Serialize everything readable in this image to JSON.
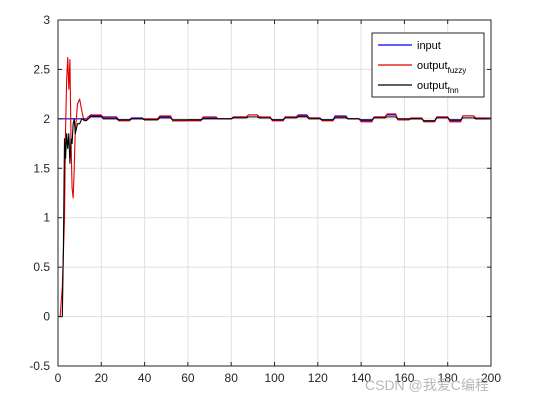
{
  "chart_data": {
    "type": "line",
    "xlim": [
      0,
      200
    ],
    "ylim": [
      -0.5,
      3
    ],
    "xticks": [
      0,
      20,
      40,
      60,
      80,
      100,
      120,
      140,
      160,
      180,
      200
    ],
    "yticks": [
      -0.5,
      0,
      0.5,
      1,
      1.5,
      2,
      2.5,
      3
    ],
    "grid": true,
    "legend_position": "top-right",
    "legend": [
      {
        "base": "input",
        "sub": ""
      },
      {
        "base": "output",
        "sub": "fuzzy"
      },
      {
        "base": "output",
        "sub": "fnn"
      }
    ],
    "series": [
      {
        "name": "input",
        "color": "#0000ff",
        "points": [
          [
            0,
            2.0
          ],
          [
            14,
            2.0
          ],
          [
            15,
            2.03
          ],
          [
            20,
            2.03
          ],
          [
            21,
            2.02
          ],
          [
            27,
            2.02
          ],
          [
            28,
            1.99
          ],
          [
            33,
            1.99
          ],
          [
            34,
            2.01
          ],
          [
            39,
            2.01
          ],
          [
            40,
            1.99
          ],
          [
            46,
            1.99
          ],
          [
            47,
            2.02
          ],
          [
            52,
            2.02
          ],
          [
            53,
            1.98
          ],
          [
            59,
            1.98
          ],
          [
            60,
            1.99
          ],
          [
            66,
            1.99
          ],
          [
            67,
            2.01
          ],
          [
            73,
            2.01
          ],
          [
            74,
            2.0
          ],
          [
            80,
            2.0
          ],
          [
            81,
            2.02
          ],
          [
            87,
            2.02
          ],
          [
            88,
            2.04
          ],
          [
            92,
            2.04
          ],
          [
            93,
            2.01
          ],
          [
            98,
            2.01
          ],
          [
            99,
            1.99
          ],
          [
            104,
            1.99
          ],
          [
            105,
            2.02
          ],
          [
            110,
            2.02
          ],
          [
            111,
            2.04
          ],
          [
            115,
            2.04
          ],
          [
            116,
            2.01
          ],
          [
            121,
            2.01
          ],
          [
            122,
            1.99
          ],
          [
            127,
            1.99
          ],
          [
            128,
            2.03
          ],
          [
            133,
            2.03
          ],
          [
            134,
            2.0
          ],
          [
            139,
            2.0
          ],
          [
            140,
            1.98
          ],
          [
            145,
            1.98
          ],
          [
            146,
            2.02
          ],
          [
            151,
            2.02
          ],
          [
            152,
            2.04
          ],
          [
            156,
            2.04
          ],
          [
            157,
            1.99
          ],
          [
            162,
            1.99
          ],
          [
            163,
            2.0
          ],
          [
            168,
            2.0
          ],
          [
            169,
            1.98
          ],
          [
            174,
            1.98
          ],
          [
            175,
            2.02
          ],
          [
            180,
            2.02
          ],
          [
            181,
            1.98
          ],
          [
            186,
            1.98
          ],
          [
            187,
            2.03
          ],
          [
            192,
            2.03
          ],
          [
            193,
            2.0
          ],
          [
            200,
            2.0
          ]
        ]
      },
      {
        "name": "output_fuzzy",
        "color": "#e00000",
        "points": [
          [
            0,
            0
          ],
          [
            1,
            0
          ],
          [
            2,
            0.3
          ],
          [
            3,
            1.0
          ],
          [
            3.5,
            1.9
          ],
          [
            4,
            2.4
          ],
          [
            4.5,
            2.62
          ],
          [
            5,
            2.3
          ],
          [
            5.5,
            2.6
          ],
          [
            6,
            1.8
          ],
          [
            6.5,
            1.3
          ],
          [
            7,
            1.2
          ],
          [
            7.5,
            1.5
          ],
          [
            8,
            1.9
          ],
          [
            8.5,
            2.0
          ],
          [
            9,
            2.15
          ],
          [
            10,
            2.2
          ],
          [
            11,
            2.08
          ],
          [
            12,
            1.98
          ],
          [
            13,
            2.0
          ],
          [
            14,
            2.02
          ],
          [
            15,
            2.04
          ],
          [
            20,
            2.04
          ],
          [
            21,
            2.01
          ],
          [
            27,
            2.01
          ],
          [
            28,
            1.98
          ],
          [
            33,
            1.98
          ],
          [
            34,
            2.0
          ],
          [
            39,
            2.0
          ],
          [
            40,
            2.0
          ],
          [
            46,
            2.0
          ],
          [
            47,
            2.03
          ],
          [
            52,
            2.03
          ],
          [
            53,
            1.98
          ],
          [
            59,
            1.98
          ],
          [
            60,
            1.98
          ],
          [
            66,
            1.98
          ],
          [
            67,
            2.02
          ],
          [
            73,
            2.02
          ],
          [
            74,
            2.0
          ],
          [
            80,
            2.0
          ],
          [
            81,
            2.02
          ],
          [
            87,
            2.02
          ],
          [
            88,
            2.04
          ],
          [
            92,
            2.04
          ],
          [
            93,
            2.02
          ],
          [
            98,
            2.02
          ],
          [
            99,
            1.98
          ],
          [
            104,
            1.98
          ],
          [
            105,
            2.02
          ],
          [
            110,
            2.02
          ],
          [
            111,
            2.03
          ],
          [
            115,
            2.03
          ],
          [
            116,
            2.01
          ],
          [
            121,
            2.01
          ],
          [
            122,
            1.98
          ],
          [
            127,
            1.98
          ],
          [
            128,
            2.02
          ],
          [
            133,
            2.02
          ],
          [
            134,
            2.0
          ],
          [
            139,
            2.0
          ],
          [
            140,
            1.97
          ],
          [
            145,
            1.97
          ],
          [
            146,
            2.02
          ],
          [
            151,
            2.02
          ],
          [
            152,
            2.05
          ],
          [
            156,
            2.05
          ],
          [
            157,
            1.99
          ],
          [
            162,
            1.99
          ],
          [
            163,
            2.01
          ],
          [
            168,
            2.01
          ],
          [
            169,
            1.97
          ],
          [
            174,
            1.97
          ],
          [
            175,
            2.02
          ],
          [
            180,
            2.02
          ],
          [
            181,
            1.97
          ],
          [
            186,
            1.97
          ],
          [
            187,
            2.03
          ],
          [
            192,
            2.03
          ],
          [
            193,
            2.01
          ],
          [
            200,
            2.01
          ]
        ]
      },
      {
        "name": "output_fnn",
        "color": "#000000",
        "points": [
          [
            0,
            0
          ],
          [
            2,
            0
          ],
          [
            2.5,
            0.7
          ],
          [
            3,
            1.8
          ],
          [
            3.5,
            1.6
          ],
          [
            4,
            1.85
          ],
          [
            4.5,
            1.7
          ],
          [
            5,
            1.85
          ],
          [
            5.5,
            1.55
          ],
          [
            6,
            1.8
          ],
          [
            6.5,
            1.75
          ],
          [
            7,
            1.95
          ],
          [
            7.5,
            2.0
          ],
          [
            8,
            1.85
          ],
          [
            9,
            1.95
          ],
          [
            10,
            1.95
          ],
          [
            11,
            2.0
          ],
          [
            13,
            1.98
          ],
          [
            15,
            2.02
          ],
          [
            20,
            2.02
          ],
          [
            21,
            2.0
          ],
          [
            27,
            2.0
          ],
          [
            28,
            1.99
          ],
          [
            33,
            1.99
          ],
          [
            34,
            2.0
          ],
          [
            39,
            2.0
          ],
          [
            40,
            1.99
          ],
          [
            46,
            1.99
          ],
          [
            47,
            2.01
          ],
          [
            52,
            2.01
          ],
          [
            53,
            1.99
          ],
          [
            59,
            1.99
          ],
          [
            60,
            1.99
          ],
          [
            66,
            1.99
          ],
          [
            67,
            2.0
          ],
          [
            73,
            2.0
          ],
          [
            74,
            2.0
          ],
          [
            80,
            2.0
          ],
          [
            81,
            2.01
          ],
          [
            87,
            2.01
          ],
          [
            88,
            2.02
          ],
          [
            92,
            2.02
          ],
          [
            93,
            2.01
          ],
          [
            98,
            2.01
          ],
          [
            99,
            1.99
          ],
          [
            104,
            1.99
          ],
          [
            105,
            2.01
          ],
          [
            110,
            2.01
          ],
          [
            111,
            2.02
          ],
          [
            115,
            2.02
          ],
          [
            116,
            2.0
          ],
          [
            121,
            2.0
          ],
          [
            122,
            1.99
          ],
          [
            127,
            1.99
          ],
          [
            128,
            2.01
          ],
          [
            133,
            2.01
          ],
          [
            134,
            2.0
          ],
          [
            139,
            2.0
          ],
          [
            140,
            1.99
          ],
          [
            145,
            1.99
          ],
          [
            146,
            2.01
          ],
          [
            151,
            2.01
          ],
          [
            152,
            2.02
          ],
          [
            156,
            2.02
          ],
          [
            157,
            2.0
          ],
          [
            162,
            2.0
          ],
          [
            163,
            2.0
          ],
          [
            168,
            2.0
          ],
          [
            169,
            1.98
          ],
          [
            174,
            1.98
          ],
          [
            175,
            2.01
          ],
          [
            180,
            2.01
          ],
          [
            181,
            1.99
          ],
          [
            186,
            1.99
          ],
          [
            187,
            2.01
          ],
          [
            192,
            2.01
          ],
          [
            193,
            2.0
          ],
          [
            200,
            2.0
          ]
        ]
      }
    ]
  },
  "watermark": "CSDN @我爱C编程"
}
